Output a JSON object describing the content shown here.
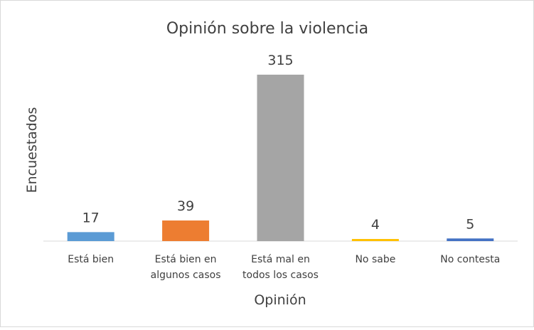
{
  "chart_data": {
    "type": "bar",
    "title": "Opinión sobre la violencia",
    "xlabel": "Opinión",
    "ylabel": "Encuestados",
    "categories": [
      [
        "Está bien"
      ],
      [
        "Está bien en",
        "algunos casos"
      ],
      [
        "Está mal en",
        "todos los casos"
      ],
      [
        "No sabe"
      ],
      [
        "No contesta"
      ]
    ],
    "values": [
      17,
      39,
      315,
      4,
      5
    ],
    "colors": [
      "#5b9bd5",
      "#ed7d31",
      "#a5a5a5",
      "#ffc000",
      "#4472c4"
    ],
    "ylim": [
      0,
      315
    ],
    "grid": false,
    "legend": "none",
    "data_labels": true
  }
}
